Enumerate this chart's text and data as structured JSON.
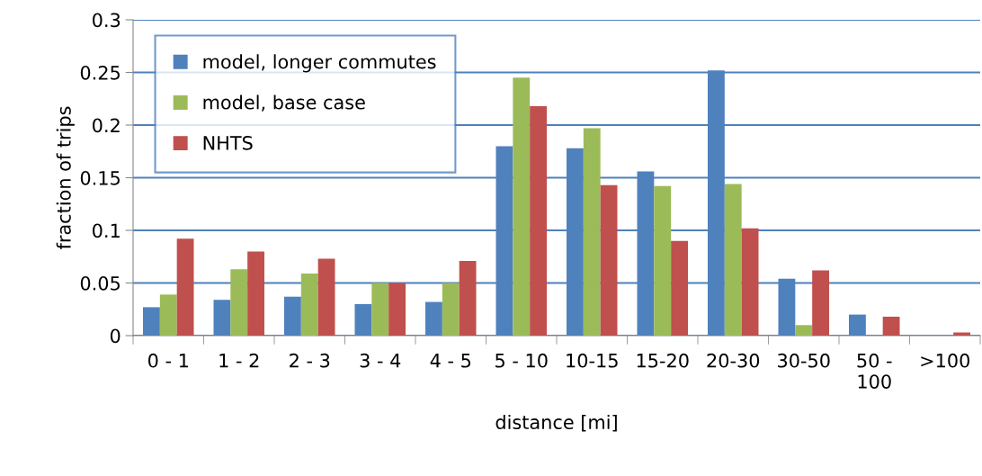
{
  "chart_data": {
    "type": "bar",
    "xlabel": "distance [mi]",
    "ylabel": "fraction of trips",
    "categories": [
      "0 - 1",
      "1 - 2",
      "2 - 3",
      "3 - 4",
      "4 - 5",
      "5 - 10",
      "10-15",
      "15-20",
      "20-30",
      "30-50",
      "50 -\n100",
      ">100"
    ],
    "series": [
      {
        "name": "model, longer commutes",
        "color": "#4f81bd",
        "values": [
          0.027,
          0.034,
          0.037,
          0.03,
          0.032,
          0.18,
          0.178,
          0.156,
          0.252,
          0.054,
          0.02,
          0
        ]
      },
      {
        "name": "model, base case",
        "color": "#9bbb59",
        "values": [
          0.039,
          0.063,
          0.059,
          0.05,
          0.05,
          0.245,
          0.197,
          0.142,
          0.144,
          0.01,
          0,
          0
        ]
      },
      {
        "name": "NHTS",
        "color": "#c0504d",
        "values": [
          0.092,
          0.08,
          0.073,
          0.05,
          0.071,
          0.218,
          0.143,
          0.09,
          0.102,
          0.062,
          0.018,
          0.003
        ]
      }
    ],
    "ylim": [
      0,
      0.3
    ],
    "yticks": [
      0,
      0.05,
      0.1,
      0.15,
      0.2,
      0.25,
      0.3
    ],
    "grid": "y",
    "legend": "top left"
  }
}
